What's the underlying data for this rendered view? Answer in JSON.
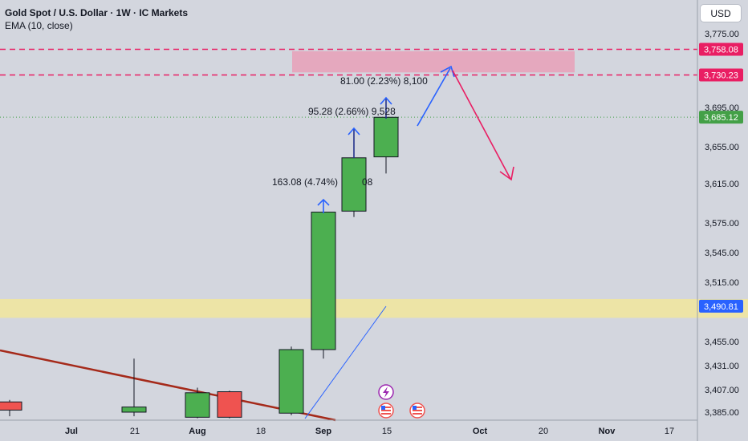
{
  "header": {
    "title": "Gold Spot / U.S. Dollar · 1W · IC Markets",
    "indicator": "EMA (10, close)"
  },
  "currency_button": "USD",
  "colors": {
    "background": "#d3d6de",
    "up_candle": "#4caf50",
    "down_candle": "#ef5350",
    "resistance_zone": "#e8a0b8",
    "support_zone": "#f0e6a0",
    "arrow_up": "#2962ff",
    "arrow_down": "#e91e63",
    "trendline": "#a52a1a"
  },
  "chart_data": {
    "type": "candlestick",
    "symbol": "Gold Spot / U.S. Dollar",
    "timeframe": "1W",
    "y_axis_ticks": [
      3775,
      3695,
      3655,
      3615,
      3575,
      3545,
      3515,
      3455,
      3431,
      3407,
      3385
    ],
    "y_axis_labels": [
      "3,775.00",
      "3,695.00",
      "3,655.00",
      "3,615.00",
      "3,575.00",
      "3,545.00",
      "3,515.00",
      "3,455.00",
      "3,431.00",
      "3,407.00",
      "3,385.00"
    ],
    "x_axis_labels": [
      "Jul",
      "21",
      "Aug",
      "18",
      "Sep",
      "15",
      "Oct",
      "20",
      "Nov",
      "17"
    ],
    "price_tags": [
      {
        "value": "3,758.08",
        "price": 3758.08,
        "color": "#e91e63",
        "style": "dashed"
      },
      {
        "value": "3,730.23",
        "price": 3730.23,
        "color": "#e91e63",
        "style": "dashed"
      },
      {
        "value": "3,685.12",
        "price": 3685.12,
        "color": "#43a047",
        "style": "dotted"
      },
      {
        "value": "3,490.81",
        "price": 3490.81,
        "color": "#2962ff",
        "style": "none"
      }
    ],
    "candles": [
      {
        "week": "Jul 7",
        "open": 3395,
        "high": 3397,
        "low": 3381,
        "close": 3387
      },
      {
        "week": "Jul 21",
        "open": 3385,
        "high": 3438,
        "low": 3381,
        "close": 3390
      },
      {
        "week": "Aug 4",
        "open": 3380,
        "high": 3409,
        "low": 3379,
        "close": 3404
      },
      {
        "week": "Aug 11",
        "open": 3405,
        "high": 3406,
        "low": 3379,
        "close": 3380
      },
      {
        "week": "Aug 25",
        "open": 3384,
        "high": 3450,
        "low": 3382,
        "close": 3447
      },
      {
        "week": "Sep 1",
        "open": 3447,
        "high": 3588,
        "low": 3438,
        "close": 3586
      },
      {
        "week": "Sep 8",
        "open": 3587,
        "high": 3645,
        "low": 3581,
        "close": 3643
      },
      {
        "week": "Sep 15",
        "open": 3644,
        "high": 3692,
        "low": 3626,
        "close": 3685
      }
    ],
    "zones": [
      {
        "name": "resistance",
        "from": 3733,
        "to": 3756
      },
      {
        "name": "support",
        "from": 3479,
        "to": 3498
      }
    ],
    "annotations": [
      {
        "text": "163.08 (4.74%) ",
        "suffix": "08"
      },
      {
        "text": "95.28 (2.66%) 9,528"
      },
      {
        "text": "81.00 (2.23%) 8,100"
      }
    ]
  }
}
